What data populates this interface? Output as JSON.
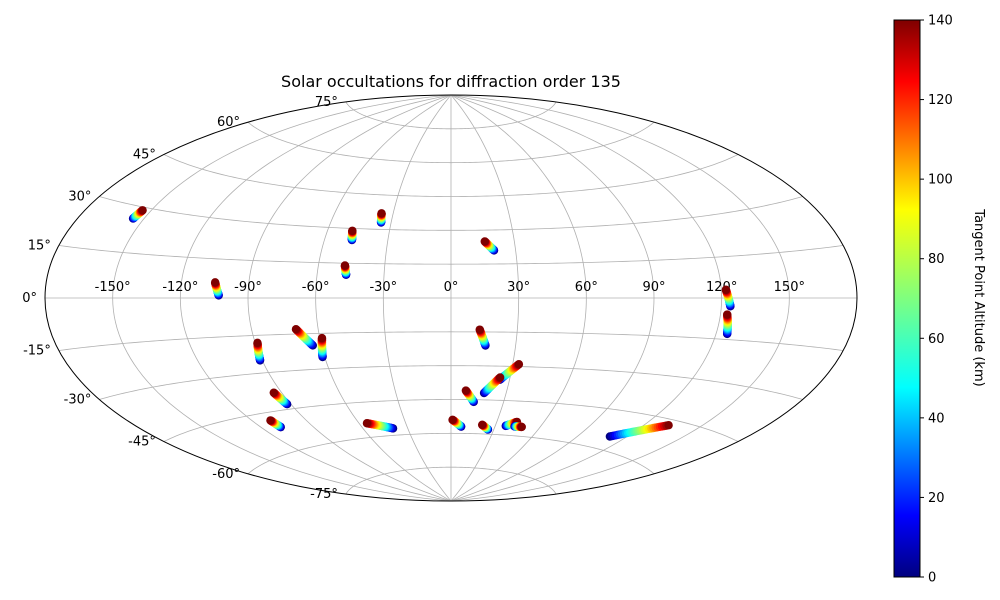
{
  "chart_data": {
    "type": "scatter",
    "projection": "aitoff",
    "title": "Solar occultations for diffraction order 135",
    "xlabel": "",
    "ylabel": "",
    "grid": true,
    "lon_ticks": [
      {
        "value": -150,
        "label": "-150°"
      },
      {
        "value": -120,
        "label": "-120°"
      },
      {
        "value": -90,
        "label": "-90°"
      },
      {
        "value": -60,
        "label": "-60°"
      },
      {
        "value": -30,
        "label": "-30°"
      },
      {
        "value": 0,
        "label": "0°"
      },
      {
        "value": 30,
        "label": "30°"
      },
      {
        "value": 60,
        "label": "60°"
      },
      {
        "value": 90,
        "label": "90°"
      },
      {
        "value": 120,
        "label": "120°"
      },
      {
        "value": 150,
        "label": "150°"
      }
    ],
    "lat_ticks": [
      {
        "value": 75,
        "label": "75°"
      },
      {
        "value": 60,
        "label": "60°"
      },
      {
        "value": 45,
        "label": "45°"
      },
      {
        "value": 30,
        "label": "30°"
      },
      {
        "value": 15,
        "label": "15°"
      },
      {
        "value": 0,
        "label": "0°"
      },
      {
        "value": -15,
        "label": "-15°"
      },
      {
        "value": -30,
        "label": "-30°"
      },
      {
        "value": -45,
        "label": "-45°"
      },
      {
        "value": -60,
        "label": "-60°"
      },
      {
        "value": -75,
        "label": "-75°"
      }
    ],
    "colorbar": {
      "label": "Tangent Point Altitude (km)",
      "range": [
        0,
        140
      ],
      "colormap": "jet",
      "ticks": [
        {
          "value": 0,
          "label": "0"
        },
        {
          "value": 20,
          "label": "20"
        },
        {
          "value": 40,
          "label": "40"
        },
        {
          "value": 60,
          "label": "60"
        },
        {
          "value": 80,
          "label": "80"
        },
        {
          "value": 100,
          "label": "100"
        },
        {
          "value": 120,
          "label": "120"
        },
        {
          "value": 140,
          "label": "140"
        }
      ]
    },
    "occultations": [
      {
        "top": [
          -154,
          29
        ],
        "bottom": [
          -155,
          26
        ]
      },
      {
        "top": [
          -36,
          37
        ],
        "bottom": [
          -35,
          33
        ]
      },
      {
        "top": [
          -48,
          29
        ],
        "bottom": [
          -47,
          25
        ]
      },
      {
        "top": [
          -48,
          14
        ],
        "bottom": [
          -47,
          10
        ]
      },
      {
        "top": [
          16,
          25
        ],
        "bottom": [
          20,
          21
        ]
      },
      {
        "top": [
          -105,
          6
        ],
        "bottom": [
          -103,
          1
        ]
      },
      {
        "top": [
          -70,
          -13
        ],
        "bottom": [
          -64,
          -20
        ]
      },
      {
        "top": [
          -89,
          -18
        ],
        "bottom": [
          -91,
          -25
        ]
      },
      {
        "top": [
          -59,
          -17
        ],
        "bottom": [
          -61,
          -25
        ]
      },
      {
        "top": [
          13,
          -14
        ],
        "bottom": [
          16,
          -21
        ]
      },
      {
        "top": [
          122,
          3
        ],
        "bottom": [
          124,
          -3
        ]
      },
      {
        "top": [
          123,
          -6
        ],
        "bottom": [
          125,
          -13
        ]
      },
      {
        "top": [
          33,
          -29
        ],
        "bottom": [
          25,
          -36
        ]
      },
      {
        "top": [
          25,
          -35
        ],
        "bottom": [
          18,
          -42
        ]
      },
      {
        "top": [
          8,
          -41
        ],
        "bottom": [
          13,
          -46
        ]
      },
      {
        "top": [
          -94,
          -38
        ],
        "bottom": [
          -92,
          -43
        ]
      },
      {
        "top": [
          -110,
          -48
        ],
        "bottom": [
          -109,
          -51
        ]
      },
      {
        "top": [
          -55,
          -54
        ],
        "bottom": [
          -40,
          -57
        ]
      },
      {
        "top": [
          1,
          -54
        ],
        "bottom": [
          7,
          -57
        ]
      },
      {
        "top": [
          21,
          -56
        ],
        "bottom": [
          26,
          -58
        ]
      },
      {
        "top": [
          43,
          -54
        ],
        "bottom": [
          37,
          -56
        ]
      },
      {
        "top": [
          48,
          -56
        ],
        "bottom": [
          43,
          -56
        ]
      },
      {
        "top": [
          133,
          -47
        ],
        "bottom": [
          110,
          -55
        ]
      }
    ]
  }
}
